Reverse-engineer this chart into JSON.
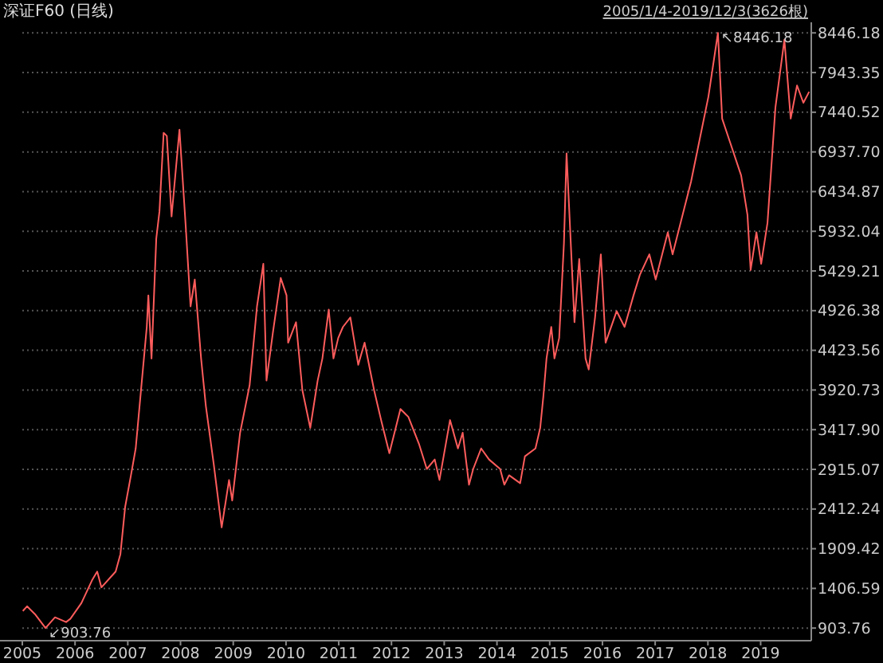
{
  "chart_data": {
    "type": "line",
    "title": "深证F60 (日线)",
    "subtitle": "2005/1/4-2019/12/3(3626根)",
    "x": [
      2005.01,
      2005.09,
      2005.24,
      2005.44,
      2005.62,
      2005.83,
      2005.91,
      2006.12,
      2006.33,
      2006.42,
      2006.5,
      2006.77,
      2006.86,
      2006.95,
      2007.06,
      2007.15,
      2007.24,
      2007.36,
      2007.39,
      2007.45,
      2007.54,
      2007.6,
      2007.68,
      2007.74,
      2007.83,
      2007.98,
      2008.1,
      2008.19,
      2008.27,
      2008.39,
      2008.48,
      2008.63,
      2008.78,
      2008.92,
      2008.98,
      2009.13,
      2009.31,
      2009.45,
      2009.57,
      2009.63,
      2009.75,
      2009.9,
      2010.01,
      2010.04,
      2010.19,
      2010.31,
      2010.46,
      2010.6,
      2010.69,
      2010.81,
      2010.9,
      2010.99,
      2011.08,
      2011.22,
      2011.37,
      2011.49,
      2011.67,
      2011.81,
      2011.96,
      2012.17,
      2012.32,
      2012.52,
      2012.67,
      2012.82,
      2012.91,
      2013.11,
      2013.26,
      2013.35,
      2013.47,
      2013.55,
      2013.7,
      2013.85,
      2014.06,
      2014.14,
      2014.23,
      2014.44,
      2014.53,
      2014.73,
      2014.82,
      2014.88,
      2014.94,
      2015.03,
      2015.09,
      2015.18,
      2015.27,
      2015.32,
      2015.47,
      2015.56,
      2015.68,
      2015.74,
      2015.86,
      2015.97,
      2016.06,
      2016.27,
      2016.42,
      2016.59,
      2016.71,
      2016.89,
      2017.01,
      2017.24,
      2017.33,
      2017.68,
      2018.01,
      2018.19,
      2018.27,
      2018.42,
      2018.63,
      2018.75,
      2018.81,
      2018.92,
      2019.01,
      2019.13,
      2019.28,
      2019.45,
      2019.57,
      2019.69,
      2019.81,
      2019.92
    ],
    "series": [
      {
        "color": "#ff5c5c",
        "values": [
          1120,
          1180,
          1080,
          903.76,
          1040,
          980,
          1020,
          1220,
          1520,
          1620,
          1420,
          1620,
          1840,
          2440,
          2840,
          3180,
          3840,
          4720,
          5120,
          4320,
          5840,
          6180,
          7180,
          7140,
          6120,
          7220,
          5980,
          4980,
          5320,
          4320,
          3720,
          2980,
          2180,
          2780,
          2520,
          3380,
          3980,
          4980,
          5520,
          4040,
          4640,
          5340,
          5120,
          4520,
          4780,
          3920,
          3440,
          4040,
          4320,
          4940,
          4320,
          4580,
          4720,
          4840,
          4240,
          4520,
          3920,
          3520,
          3120,
          3680,
          3580,
          3240,
          2920,
          3040,
          2780,
          3540,
          3180,
          3380,
          2720,
          2920,
          3180,
          3040,
          2920,
          2720,
          2840,
          2740,
          3080,
          3180,
          3440,
          3840,
          4320,
          4720,
          4320,
          4580,
          5780,
          6920,
          4780,
          5580,
          4320,
          4180,
          4840,
          5640,
          4520,
          4920,
          4720,
          5120,
          5380,
          5640,
          5320,
          5920,
          5640,
          6560,
          7640,
          8446.18,
          7360,
          7060,
          6640,
          6140,
          5440,
          5920,
          5520,
          6040,
          7500,
          8360,
          7360,
          7780,
          7560,
          7700
        ]
      }
    ],
    "xlim": [
      2005,
      2019.96
    ],
    "ylim": [
      744,
      8580
    ],
    "xticks": [
      2005,
      2006,
      2007,
      2008,
      2009,
      2010,
      2011,
      2012,
      2013,
      2014,
      2015,
      2016,
      2017,
      2018,
      2019
    ],
    "yticks": [
      {
        "value": 903.76,
        "label": "903.76"
      },
      {
        "value": 1406.59,
        "label": "1406.59"
      },
      {
        "value": 1909.42,
        "label": "1909.42"
      },
      {
        "value": 2412.24,
        "label": "2412.24"
      },
      {
        "value": 2915.07,
        "label": "2915.07"
      },
      {
        "value": 3417.9,
        "label": "3417.90"
      },
      {
        "value": 3920.73,
        "label": "3920.73"
      },
      {
        "value": 4423.56,
        "label": "4423.56"
      },
      {
        "value": 4926.38,
        "label": "4926.38"
      },
      {
        "value": 5429.21,
        "label": "5429.21"
      },
      {
        "value": 5932.04,
        "label": "5932.04"
      },
      {
        "value": 6434.87,
        "label": "6434.87"
      },
      {
        "value": 6937.7,
        "label": "6937.70"
      },
      {
        "value": 7440.52,
        "label": "7440.52"
      },
      {
        "value": 7943.35,
        "label": "7943.35"
      },
      {
        "value": 8446.18,
        "label": "8446.18"
      }
    ],
    "grid": "y",
    "annotations": [
      {
        "text": "↖8446.18",
        "x": 2018.19,
        "y": 8446.18
      },
      {
        "text": "↙903.76",
        "x": 2005.44,
        "y": 903.76
      }
    ]
  }
}
